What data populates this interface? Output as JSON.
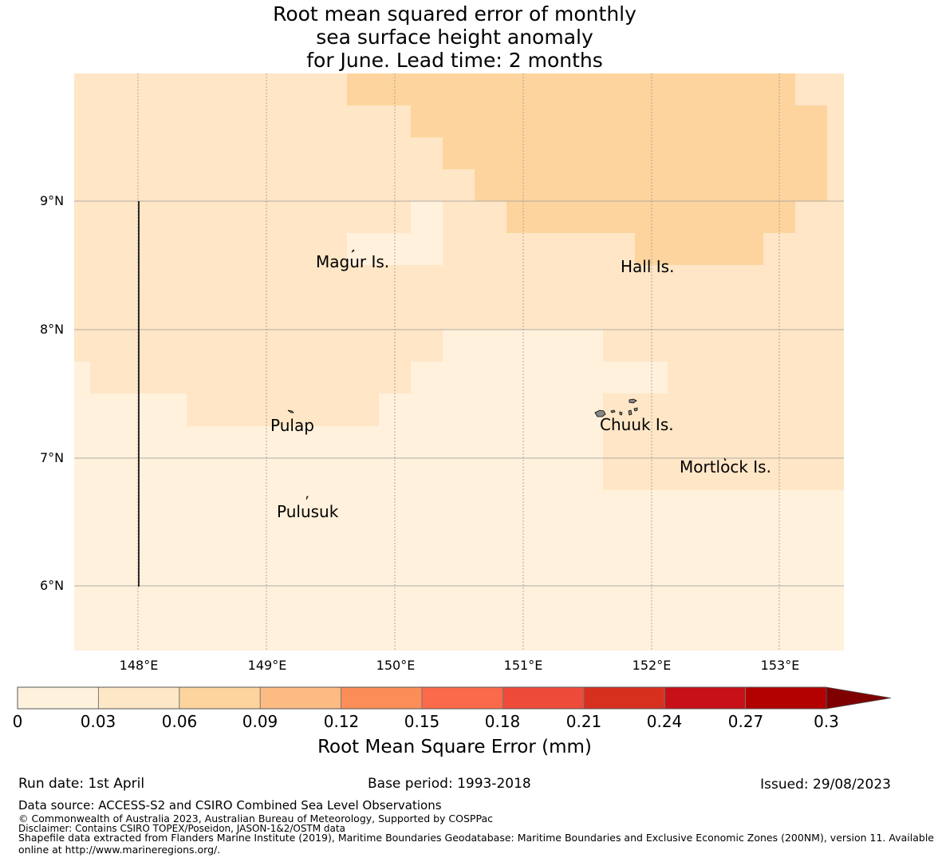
{
  "title": {
    "line1": "Root mean squared error of monthly",
    "line2": "sea surface height anomaly",
    "line3": "for June. Lead time: 2 months"
  },
  "map": {
    "lat_ticks": [
      "9°N",
      "8°N",
      "7°N",
      "6°N"
    ],
    "lon_ticks": [
      "148°E",
      "149°E",
      "150°E",
      "151°E",
      "152°E",
      "153°E"
    ],
    "extent": {
      "lon_min": 147.5,
      "lon_max": 153.5,
      "lat_min": 5.5,
      "lat_max": 10.0
    },
    "grid_resolution_deg": 0.25,
    "grid_lines": true,
    "place_labels": [
      {
        "name": "Magur Is."
      },
      {
        "name": "Hall Is."
      },
      {
        "name": "Pulap"
      },
      {
        "name": "Chuuk Is."
      },
      {
        "name": "Mortlock Is."
      },
      {
        "name": "Pulusuk"
      }
    ],
    "colors": {
      "bin_0_03": "#fff1dc",
      "bin_03_06": "#fee6c6",
      "bin_06_09": "#fdd49e",
      "grid": "#999999"
    }
  },
  "colorbar": {
    "ticks": [
      "0",
      "0.03",
      "0.06",
      "0.09",
      "0.12",
      "0.15",
      "0.18",
      "0.21",
      "0.24",
      "0.27",
      "0.3"
    ],
    "colors": [
      "#fff2dd",
      "#fee7c7",
      "#fdd49e",
      "#fdbb84",
      "#fc8d59",
      "#fb6a4a",
      "#ef4b3a",
      "#d7301f",
      "#c71017",
      "#b30000"
    ],
    "extend_color": "#7f0000",
    "label": "Root Mean Square Error (mm)"
  },
  "meta": {
    "run_date": "Run date: 1st April",
    "base_period": "Base period: 1993-2018",
    "issued": "Issued: 29/08/2023"
  },
  "footer": {
    "source": "Data source: ACCESS-S2 and CSIRO Combined Sea Level Observations",
    "copyright": "© Commonwealth of Australia 2023, Australian Bureau of Meteorology, Supported by COSPPac",
    "disclaimer": "Disclaimer: Contains CSIRO TOPEX/Poseidon, JASON-1&2/OSTM data",
    "shapefile_line1": "Shapefile data extracted from Flanders Marine Institute (2019), Maritime Boundaries Geodatabase: Maritime Boundaries and Exclusive Economic Zones (200NM), version 11. Available",
    "shapefile_line2": "online at http://www.marineregions.org/."
  }
}
